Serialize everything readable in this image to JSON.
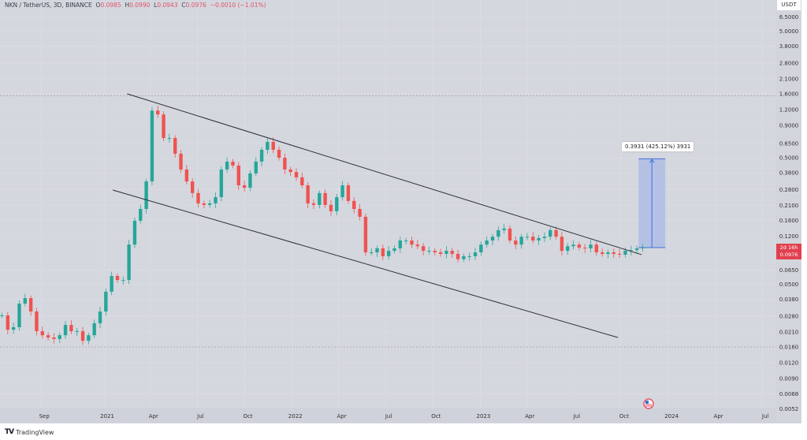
{
  "header": {
    "symbol": "NKN / TetherUS, 3D, BINANCE",
    "o_label": "O",
    "o": "0.0985",
    "h_label": "H",
    "h": "0.0990",
    "l_label": "L",
    "l": "0.0943",
    "c_label": "C",
    "c": "0.0976",
    "change": "−0.0010 (−1.01%)"
  },
  "price_axis": {
    "currency": "USDT",
    "countdown": "2d 16h",
    "last_price": "0.0976"
  },
  "measurement": {
    "label": "0.3931 (425.12%) 3931",
    "from_price": 0.0976,
    "to_price": 0.4907,
    "start": "2023-11-04",
    "end": "2023-12-26"
  },
  "branding": {
    "logo": "TV",
    "name": "TradingView"
  },
  "colors": {
    "up": "#26a69a",
    "down": "#ef5350",
    "background": "#d5d7de",
    "measure_fill": "#a9b9e6",
    "measure_line": "#3f6fd8",
    "trendline": "#2a2e39"
  },
  "chart_data": {
    "type": "candlestick",
    "title": "NKN / TetherUS, 3D, BINANCE",
    "y_scale": "log",
    "ylim": [
      0.0046,
      7.2
    ],
    "xlim": [
      "2020-06-14",
      "2024-08-20"
    ],
    "grid": true,
    "y_ticks": [
      "6.5000",
      "5.0000",
      "3.8000",
      "2.8000",
      "2.1000",
      "1.6000",
      "1.2000",
      "0.9000",
      "0.6500",
      "0.5000",
      "0.3800",
      "0.2800",
      "0.2100",
      "0.1600",
      "0.1200",
      "0.0650",
      "0.0500",
      "0.0380",
      "0.0280",
      "0.0210",
      "0.0160",
      "0.0120",
      "0.0090",
      "0.0068",
      "0.0052"
    ],
    "x_ticks": [
      {
        "label": "Sep",
        "date": "2020-09-01"
      },
      {
        "label": "2021",
        "date": "2021-01-01"
      },
      {
        "label": "Apr",
        "date": "2021-04-01"
      },
      {
        "label": "Jul",
        "date": "2021-07-01"
      },
      {
        "label": "Oct",
        "date": "2021-10-01"
      },
      {
        "label": "2022",
        "date": "2022-01-01"
      },
      {
        "label": "Apr",
        "date": "2022-04-01"
      },
      {
        "label": "Jul",
        "date": "2022-07-01"
      },
      {
        "label": "Oct",
        "date": "2022-10-01"
      },
      {
        "label": "2023",
        "date": "2023-01-01"
      },
      {
        "label": "Apr",
        "date": "2023-04-01"
      },
      {
        "label": "Jul",
        "date": "2023-07-01"
      },
      {
        "label": "Oct",
        "date": "2023-10-01"
      },
      {
        "label": "2024",
        "date": "2024-01-01"
      },
      {
        "label": "Apr",
        "date": "2024-04-01"
      },
      {
        "label": "Jul",
        "date": "2024-07-01"
      }
    ],
    "series_start": "2020-06-17",
    "series_end": "2023-11-12",
    "closes": [
      0.0284,
      0.0219,
      0.0229,
      0.0352,
      0.0389,
      0.0305,
      0.0213,
      0.0198,
      0.019,
      0.0185,
      0.0198,
      0.0239,
      0.0213,
      0.0213,
      0.0179,
      0.0198,
      0.0246,
      0.0305,
      0.0437,
      0.0582,
      0.0541,
      0.0541,
      0.103,
      0.159,
      0.197,
      0.325,
      1.18,
      1.1,
      0.716,
      0.716,
      0.538,
      0.404,
      0.325,
      0.263,
      0.218,
      0.212,
      0.218,
      0.244,
      0.404,
      0.466,
      0.434,
      0.303,
      0.29,
      0.376,
      0.466,
      0.578,
      0.667,
      0.578,
      0.5,
      0.404,
      0.386,
      0.35,
      0.303,
      0.218,
      0.212,
      0.263,
      0.212,
      0.189,
      0.244,
      0.303,
      0.228,
      0.197,
      0.171,
      0.0895,
      0.0895,
      0.0962,
      0.0834,
      0.092,
      0.0962,
      0.111,
      0.111,
      0.103,
      0.1,
      0.092,
      0.092,
      0.0895,
      0.087,
      0.092,
      0.087,
      0.079,
      0.0834,
      0.0834,
      0.0895,
      0.103,
      0.111,
      0.119,
      0.134,
      0.138,
      0.111,
      0.103,
      0.119,
      0.119,
      0.111,
      0.116,
      0.119,
      0.134,
      0.119,
      0.092,
      0.1,
      0.103,
      0.0975,
      0.0962,
      0.103,
      0.0895,
      0.087,
      0.0895,
      0.087,
      0.0858,
      0.092,
      0.0933,
      0.0962,
      0.0976
    ],
    "trendlines": [
      {
        "name": "upper",
        "from": {
          "date": "2021-02-15",
          "price": 1.6
        },
        "to": {
          "date": "2023-11-10",
          "price": 0.0858
        }
      },
      {
        "name": "lower",
        "from": {
          "date": "2021-01-18",
          "price": 0.278
        },
        "to": {
          "date": "2023-09-25",
          "price": 0.019
        }
      }
    ],
    "horizontal_levels": [
      1.55,
      0.016
    ]
  }
}
